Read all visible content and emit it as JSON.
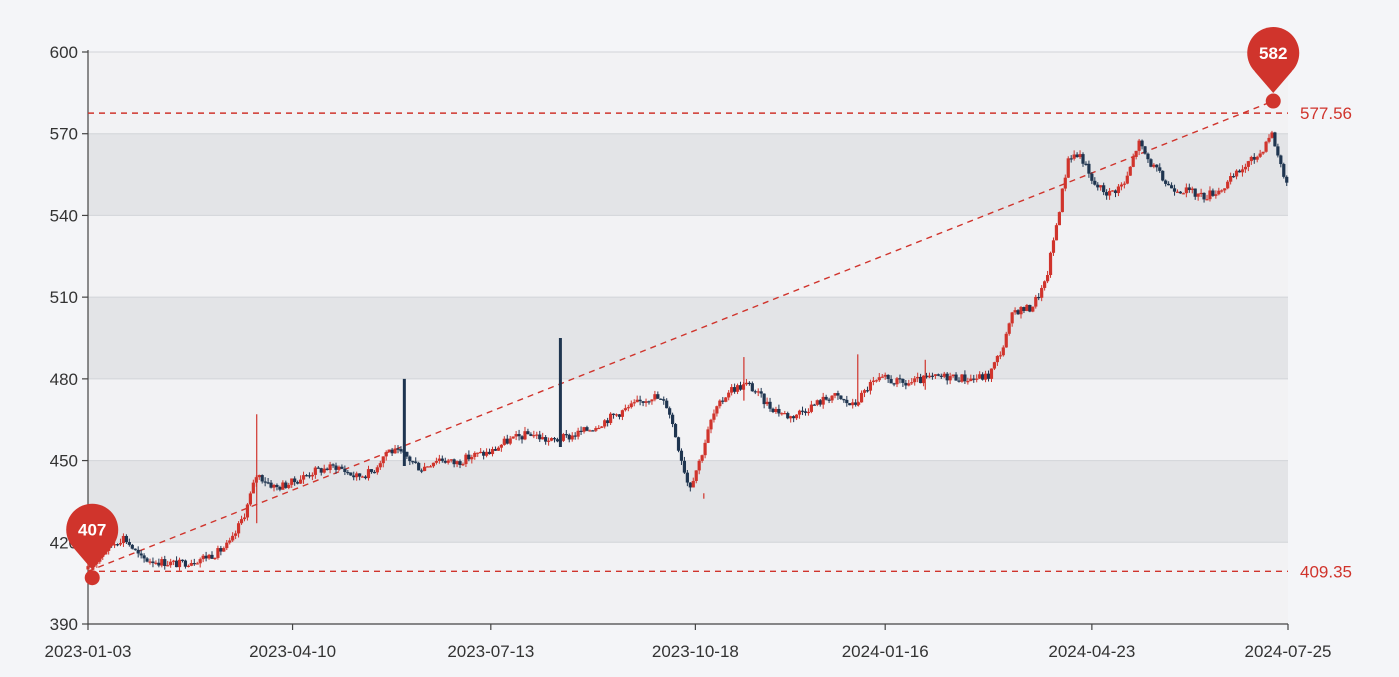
{
  "chart_data": {
    "type": "candlestick",
    "xlabel": "",
    "ylabel": "",
    "title": "",
    "x_range": [
      "2023-01-03",
      "2024-07-25"
    ],
    "ylim": [
      390,
      600
    ],
    "y_ticks": [
      390,
      420,
      450,
      480,
      510,
      540,
      570,
      600
    ],
    "x_ticks": [
      "2023-01-03",
      "2023-04-10",
      "2023-07-13",
      "2023-10-18",
      "2024-01-16",
      "2024-04-23",
      "2024-07-25"
    ],
    "y_tick_labels": [
      "390",
      "420",
      "450",
      "480",
      "510",
      "540",
      "570",
      "600"
    ],
    "grid": "alternating horizontal bands",
    "up_color": "#d0342c",
    "down_color": "#1f3550",
    "series_path": [
      [
        "2023-01-03",
        410
      ],
      [
        "2023-01-12",
        418
      ],
      [
        "2023-01-20",
        422
      ],
      [
        "2023-01-28",
        414
      ],
      [
        "2023-02-05",
        413
      ],
      [
        "2023-02-15",
        412
      ],
      [
        "2023-02-25",
        414
      ],
      [
        "2023-03-05",
        416
      ],
      [
        "2023-03-12",
        420
      ],
      [
        "2023-03-19",
        432
      ],
      [
        "2023-03-24",
        445
      ],
      [
        "2023-04-02",
        440
      ],
      [
        "2023-04-10",
        442
      ],
      [
        "2023-04-20",
        446
      ],
      [
        "2023-05-01",
        448
      ],
      [
        "2023-05-10",
        444
      ],
      [
        "2023-05-18",
        446
      ],
      [
        "2023-05-25",
        454
      ],
      [
        "2023-06-02",
        452
      ],
      [
        "2023-06-10",
        447
      ],
      [
        "2023-06-18",
        451
      ],
      [
        "2023-06-26",
        449
      ],
      [
        "2023-07-05",
        452
      ],
      [
        "2023-07-13",
        453
      ],
      [
        "2023-07-20",
        457
      ],
      [
        "2023-08-01",
        460
      ],
      [
        "2023-08-10",
        457
      ],
      [
        "2023-08-20",
        459
      ],
      [
        "2023-08-30",
        462
      ],
      [
        "2023-09-08",
        466
      ],
      [
        "2023-09-18",
        470
      ],
      [
        "2023-09-28",
        474
      ],
      [
        "2023-10-05",
        470
      ],
      [
        "2023-10-10",
        455
      ],
      [
        "2023-10-15",
        440
      ],
      [
        "2023-10-20",
        450
      ],
      [
        "2023-10-26",
        466
      ],
      [
        "2023-11-03",
        476
      ],
      [
        "2023-11-12",
        478
      ],
      [
        "2023-11-22",
        470
      ],
      [
        "2023-12-02",
        466
      ],
      [
        "2023-12-12",
        470
      ],
      [
        "2023-12-22",
        474
      ],
      [
        "2024-01-01",
        470
      ],
      [
        "2024-01-09",
        478
      ],
      [
        "2024-01-16",
        480
      ],
      [
        "2024-01-25",
        478
      ],
      [
        "2024-02-05",
        480
      ],
      [
        "2024-02-15",
        481
      ],
      [
        "2024-02-25",
        480
      ],
      [
        "2024-03-05",
        481
      ],
      [
        "2024-03-12",
        492
      ],
      [
        "2024-03-17",
        505
      ],
      [
        "2024-03-25",
        506
      ],
      [
        "2024-04-01",
        515
      ],
      [
        "2024-04-07",
        540
      ],
      [
        "2024-04-12",
        562
      ],
      [
        "2024-04-18",
        562
      ],
      [
        "2024-04-23",
        552
      ],
      [
        "2024-05-01",
        548
      ],
      [
        "2024-05-09",
        552
      ],
      [
        "2024-05-15",
        567
      ],
      [
        "2024-05-20",
        560
      ],
      [
        "2024-05-29",
        551
      ],
      [
        "2024-06-07",
        549
      ],
      [
        "2024-06-15",
        547
      ],
      [
        "2024-06-24",
        550
      ],
      [
        "2024-07-03",
        557
      ],
      [
        "2024-07-12",
        563
      ],
      [
        "2024-07-17",
        571
      ],
      [
        "2024-07-21",
        560
      ],
      [
        "2024-07-25",
        551
      ]
    ],
    "spikes": [
      {
        "date": "2023-03-24",
        "high": 467,
        "low": 427,
        "color": "up"
      },
      {
        "date": "2023-06-02",
        "high": 480,
        "low": 448,
        "color": "down"
      },
      {
        "date": "2023-08-15",
        "high": 495,
        "low": 455,
        "color": "down"
      },
      {
        "date": "2023-10-22",
        "high": 438,
        "low": 436,
        "color": "up"
      },
      {
        "date": "2023-11-10",
        "high": 488,
        "low": 472,
        "color": "up"
      },
      {
        "date": "2024-01-03",
        "high": 489,
        "low": 470,
        "color": "up"
      },
      {
        "date": "2024-02-04",
        "high": 487,
        "low": 476,
        "color": "up"
      }
    ],
    "markers": [
      {
        "label": "407",
        "date": "2023-01-05",
        "value": 407,
        "type": "min"
      },
      {
        "label": "582",
        "date": "2024-07-18",
        "value": 582,
        "type": "max"
      }
    ],
    "reference_lines": [
      {
        "value": 577.56,
        "label": "577.56"
      },
      {
        "value": 409.35,
        "label": "409.35"
      }
    ],
    "trend_line": [
      [
        "2023-01-03",
        409.35
      ],
      [
        "2024-07-18",
        582
      ]
    ]
  }
}
